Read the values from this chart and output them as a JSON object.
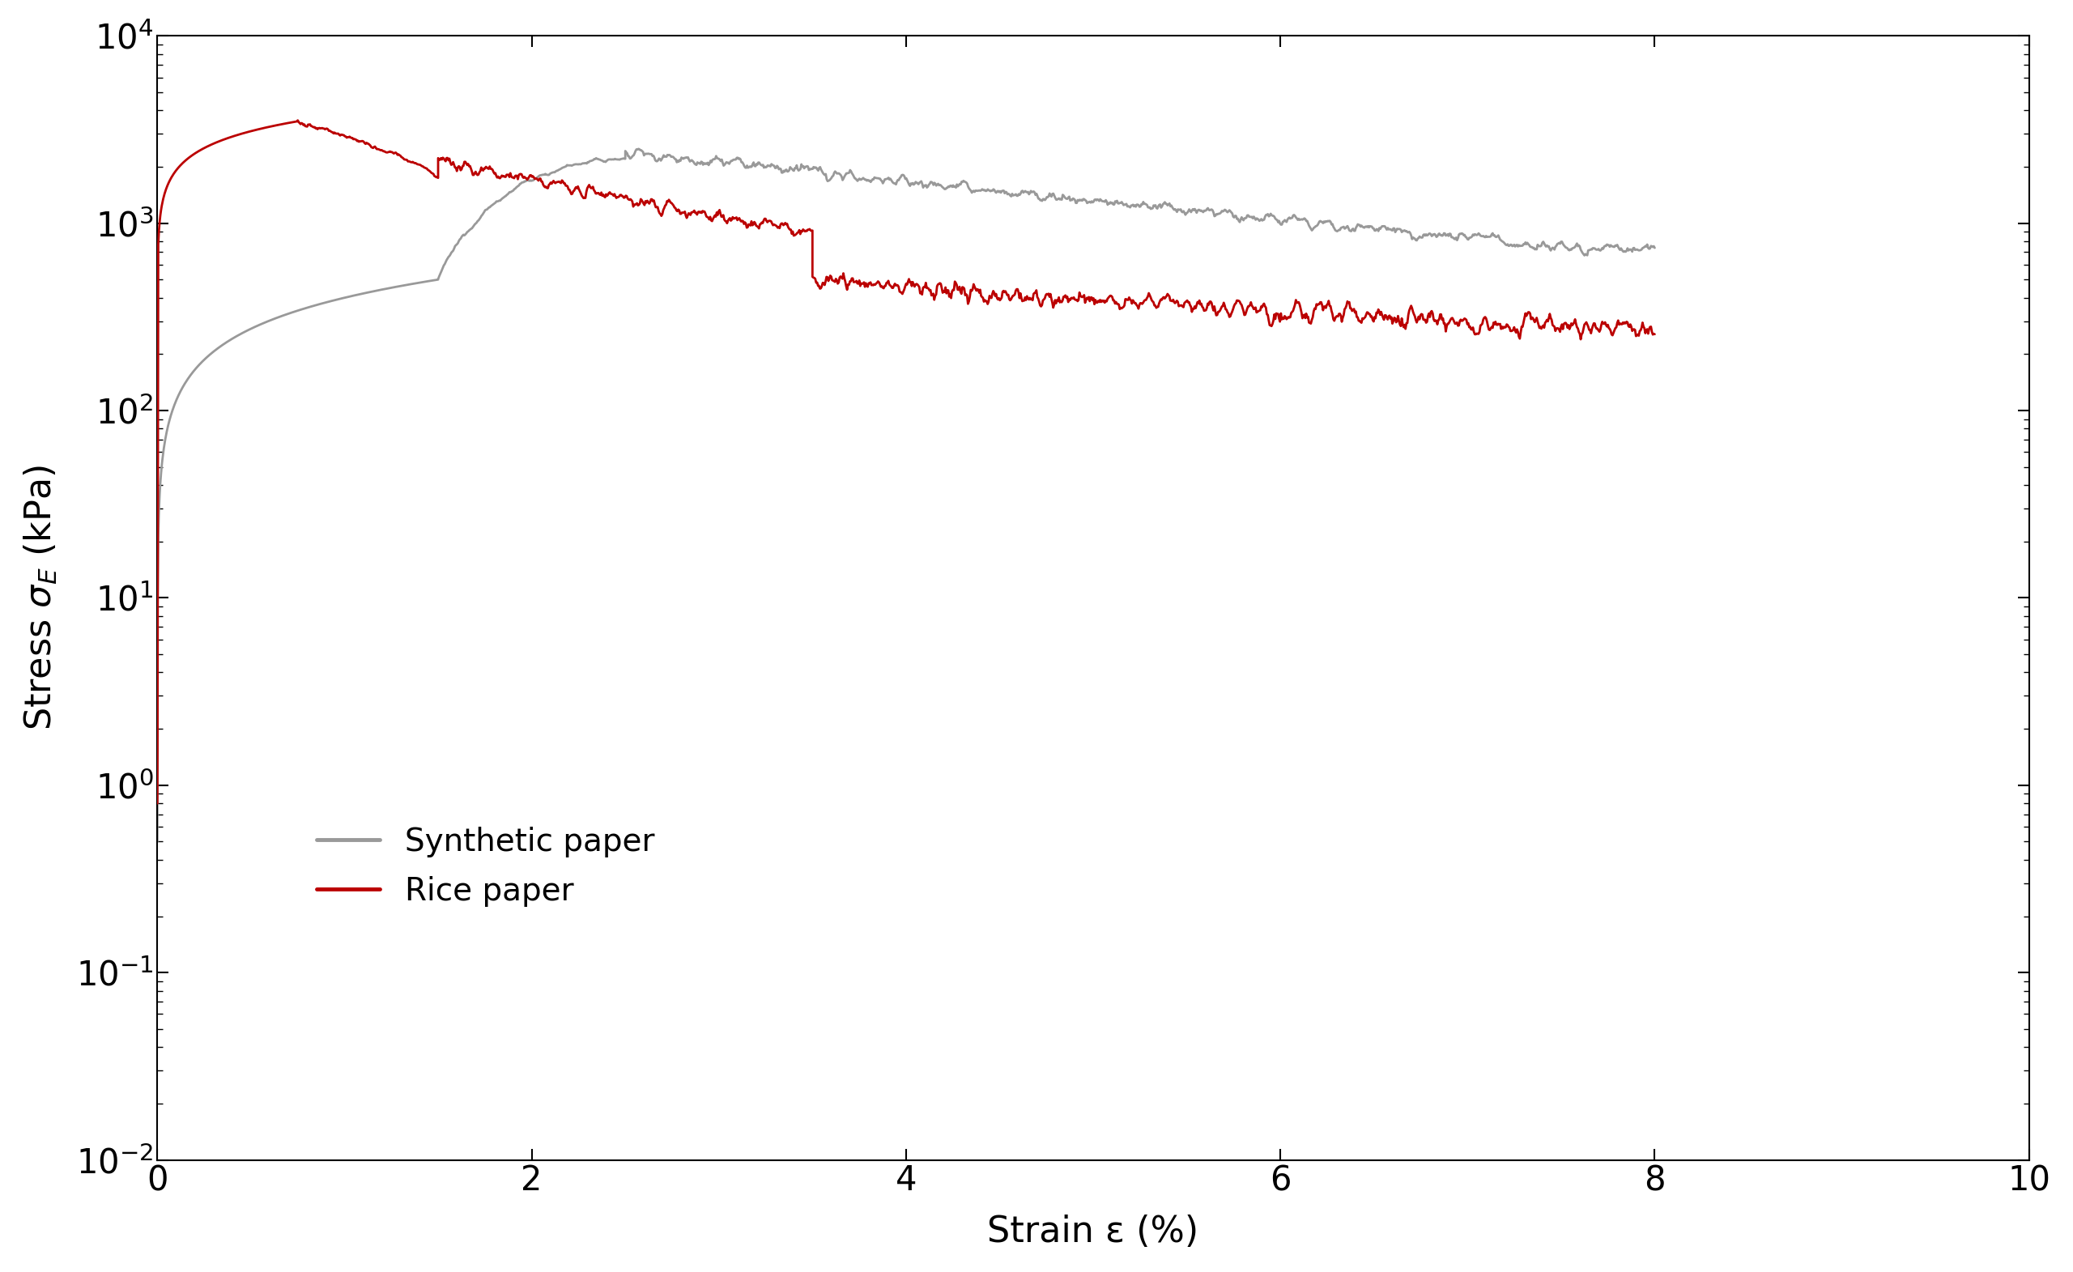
{
  "title": "",
  "xlabel": "Strain ε (%)",
  "ylabel": "Stress $\\sigma_E$ (kPa)",
  "xlim": [
    0,
    10
  ],
  "ylim_log": [
    -2,
    4
  ],
  "xticks": [
    0,
    2,
    4,
    6,
    8,
    10
  ],
  "synthetic_color": "#999999",
  "rice_color": "#bb0000",
  "legend_labels": [
    "Synthetic paper",
    "Rice paper"
  ],
  "background_color": "#ffffff",
  "linewidth": 2.0
}
